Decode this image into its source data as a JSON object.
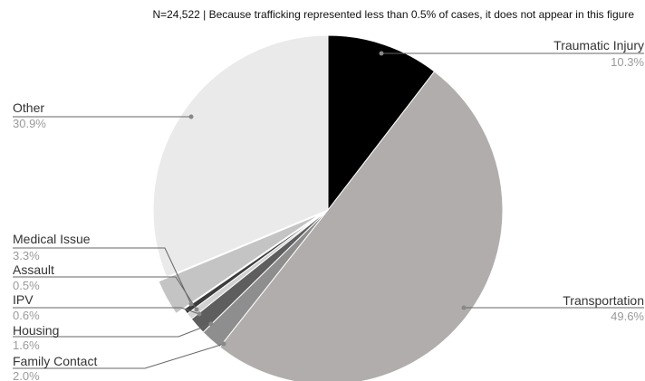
{
  "chart_data": {
    "type": "pie",
    "note": "N=24,522 |  Because trafficking represented less than 0.5% of cases, it does not appear in this figure",
    "slices": [
      {
        "label": "Traumatic Injury",
        "value": 10.3,
        "value_label": "10.3%",
        "color": "#000000"
      },
      {
        "label": "Transportation",
        "value": 49.6,
        "value_label": "49.6%",
        "color": "#b0adac"
      },
      {
        "label": "Family Contact",
        "value": 2.0,
        "value_label": "2.0%",
        "color": "#8e8e8e"
      },
      {
        "label": "Housing",
        "value": 1.6,
        "value_label": "1.6%",
        "color": "#5e5e5e"
      },
      {
        "label": "IPV",
        "value": 0.6,
        "value_label": "0.6%",
        "color": "#d2d2d2"
      },
      {
        "label": "Assault",
        "value": 0.5,
        "value_label": "0.5%",
        "color": "#3c3c3c"
      },
      {
        "label": "Medical Issue",
        "value": 3.3,
        "value_label": "3.3%",
        "color": "#c4c4c4"
      },
      {
        "label": "Other",
        "value": 30.9,
        "value_label": "30.9%",
        "color": "#eaeaea"
      }
    ],
    "start_angle_deg": 0,
    "direction": "clockwise",
    "exploded_slice": "Medical Issue"
  }
}
